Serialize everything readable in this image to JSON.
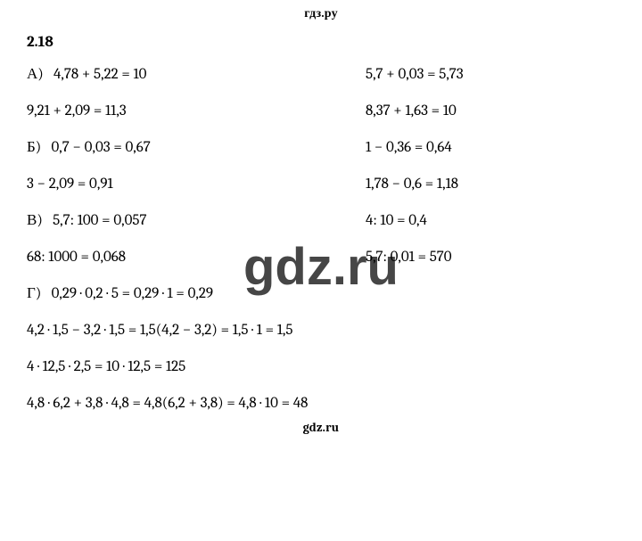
{
  "brand": {
    "header": "гдз.ру",
    "footer": "gdz.ru",
    "watermark": "gdz.ru"
  },
  "section_number": "2.18",
  "groups": {
    "A": {
      "label": "А)",
      "rows": [
        {
          "left": "4,78 + 5,22 = 10",
          "right": "5,7 + 0,03 = 5,73"
        },
        {
          "left": "9,21 + 2,09 = 11,3",
          "right": "8,37 + 1,63 = 10"
        }
      ]
    },
    "B": {
      "label": "Б)",
      "rows": [
        {
          "left": "0,7 − 0,03 = 0,67",
          "right": "1 − 0,36 = 0,64"
        },
        {
          "left": "3 − 2,09 = 0,91",
          "right": "1,78 − 0,6 = 1,18"
        }
      ]
    },
    "V": {
      "label": "В)",
      "rows": [
        {
          "left": "5,7: 100 = 0,057",
          "right": "4: 10 = 0,4"
        },
        {
          "left": "68: 1000 = 0,068",
          "right": "5,7: 0,01 = 570"
        }
      ]
    },
    "G": {
      "label": "Г)",
      "rows": [
        "0,29 · 0,2 · 5 = 0,29 · 1 = 0,29",
        "4,2 · 1,5 − 3,2 · 1,5 = 1,5(4,2 − 3,2) = 1,5 · 1 = 1,5",
        "4 · 12,5 · 2,5 = 10 · 12,5 = 125",
        "4,8 · 6,2 + 3,8 · 4,8 = 4,8(6,2 + 3,8) = 4,8 · 10 = 48"
      ]
    }
  },
  "colors": {
    "text": "#000000",
    "background": "#ffffff"
  },
  "typography": {
    "body_fontsize_pt": 13,
    "header_fontsize_pt": 10,
    "watermark_fontsize_pt": 44
  }
}
